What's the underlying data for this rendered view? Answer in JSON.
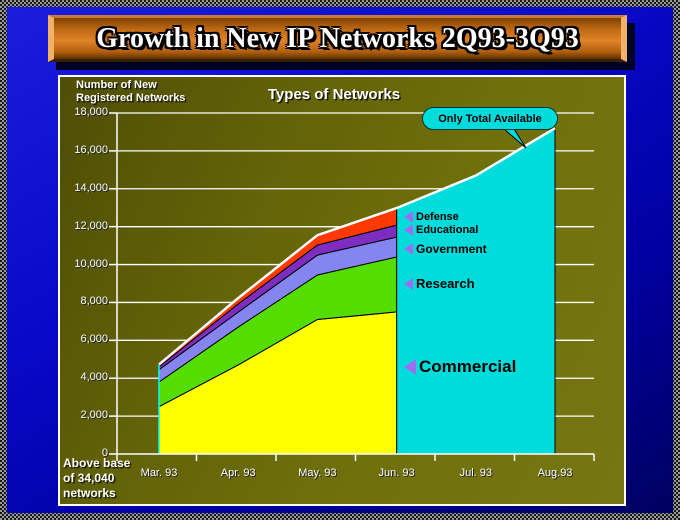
{
  "slide": {
    "title": "Growth in New IP Networks 2Q93-3Q93"
  },
  "chart": {
    "y_axis_title": [
      "Number of New",
      "Registered Networks"
    ],
    "title": "Types of Networks",
    "callout_text": "Only Total Available",
    "footnote": [
      "Above base",
      "of 34,040",
      "networks"
    ],
    "legend_labels": [
      "Defense",
      "Educational",
      "Government",
      "Research",
      "Commercial"
    ],
    "accent_colors": {
      "banner_orange": "#E08228",
      "panel_olive": "#6B6B0B",
      "background_blue": "#0808C8",
      "callout_cyan": "#00DCDC",
      "legend_marker_purple": "#9B6FF0"
    }
  },
  "chart_data": {
    "type": "area",
    "stacked": true,
    "title": "Types of Networks",
    "ylabel": "Number of New Registered Networks",
    "categories": [
      "Mar. 93",
      "Apr. 93",
      "May. 93",
      "Jun. 93",
      "Jul. 93",
      "Aug.93"
    ],
    "y_tick_labels": [
      "0",
      "2,000",
      "4,000",
      "6,000",
      "8,000",
      "10,000",
      "12,000",
      "14,000",
      "16,000",
      "18,000"
    ],
    "ylim": [
      0,
      18000
    ],
    "grid": true,
    "series": [
      {
        "name": "Commercial",
        "color": "#FFFF00",
        "values": [
          2500,
          4700,
          7100,
          7500
        ]
      },
      {
        "name": "Research",
        "color": "#55DD00",
        "values": [
          1300,
          2000,
          2350,
          2900
        ]
      },
      {
        "name": "Government",
        "color": "#8585F0",
        "values": [
          650,
          790,
          1050,
          1050
        ]
      },
      {
        "name": "Educational",
        "color": "#7D2EC0",
        "values": [
          160,
          430,
          530,
          630
        ]
      },
      {
        "name": "Defense",
        "color": "#FF3900",
        "values": [
          110,
          310,
          520,
          900
        ]
      }
    ],
    "total_series": {
      "name": "Total",
      "color": "#00DCDC",
      "values": [
        4720,
        8230,
        11550,
        12980,
        14700,
        17200
      ]
    },
    "detail_months": [
      "Mar. 93",
      "Apr. 93",
      "May. 93",
      "Jun. 93"
    ],
    "total_only_months": [
      "Jun. 93",
      "Jul. 93",
      "Aug.93"
    ],
    "annotation": "Only Total Available",
    "footnote": "Above base of 34,040 networks",
    "legend_position": "inline-right"
  }
}
